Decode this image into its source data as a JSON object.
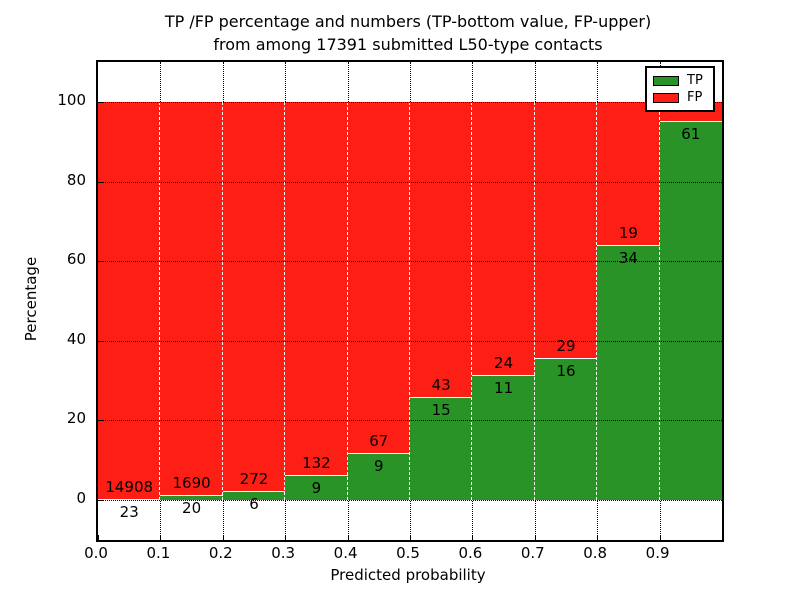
{
  "title": {
    "line1": "TP /FP percentage and numbers (TP-bottom value, FP-upper)",
    "line2": "from among 17391 submitted L50-type contacts"
  },
  "axes": {
    "xlabel": "Predicted probability",
    "ylabel": "Percentage",
    "x_tick_labels": [
      "0.0",
      "0.1",
      "0.2",
      "0.3",
      "0.4",
      "0.5",
      "0.6",
      "0.7",
      "0.8",
      "0.9"
    ],
    "y_tick_labels": [
      "0",
      "20",
      "40",
      "60",
      "80",
      "100"
    ],
    "y_tick_values": [
      0,
      20,
      40,
      60,
      80,
      100
    ],
    "xlim": [
      0.0,
      1.0
    ],
    "ylim": [
      -10,
      110
    ],
    "grid": "dotted"
  },
  "legend": {
    "position": "upper-right",
    "items": [
      {
        "label": "TP",
        "color": "#2a9328"
      },
      {
        "label": "FP",
        "color": "#fd1f15"
      }
    ]
  },
  "colors": {
    "tp": "#2a9328",
    "fp": "#fd1f15",
    "background": "#ffffff",
    "grid": "#000000",
    "text": "#000000"
  },
  "chart_data": {
    "type": "bar",
    "stacked": true,
    "title": "TP /FP percentage and numbers (TP-bottom value, FP-upper)\nfrom among 17391 submitted L50-type contacts",
    "xlabel": "Predicted probability",
    "ylabel": "Percentage",
    "ylim": [
      -10,
      110
    ],
    "legend_entries": [
      "TP",
      "FP"
    ],
    "note": "Each bar spans a 0.1-wide predicted-probability bin; green (TP) percentage on bottom, red (FP) on top, always summing to 100%. Counts are annotated at the TP/FP boundary (TP below, FP above). The FP count of the last bin is hidden behind the legend.",
    "bins": [
      {
        "x0": 0.0,
        "x1": 0.1,
        "tp": 23,
        "fp": 14908,
        "tp_pct": 0.15
      },
      {
        "x0": 0.1,
        "x1": 0.2,
        "tp": 20,
        "fp": 1690,
        "tp_pct": 1.17
      },
      {
        "x0": 0.2,
        "x1": 0.3,
        "tp": 6,
        "fp": 272,
        "tp_pct": 2.16
      },
      {
        "x0": 0.3,
        "x1": 0.4,
        "tp": 9,
        "fp": 132,
        "tp_pct": 6.38
      },
      {
        "x0": 0.4,
        "x1": 0.5,
        "tp": 9,
        "fp": 67,
        "tp_pct": 11.84
      },
      {
        "x0": 0.5,
        "x1": 0.6,
        "tp": 15,
        "fp": 43,
        "tp_pct": 25.86
      },
      {
        "x0": 0.6,
        "x1": 0.7,
        "tp": 11,
        "fp": 24,
        "tp_pct": 31.43
      },
      {
        "x0": 0.7,
        "x1": 0.8,
        "tp": 16,
        "fp": 29,
        "tp_pct": 35.56
      },
      {
        "x0": 0.8,
        "x1": 0.9,
        "tp": 34,
        "fp": 19,
        "tp_pct": 64.15
      },
      {
        "x0": 0.9,
        "x1": 1.0,
        "tp": 61,
        "fp": null,
        "tp_pct": 95.3
      }
    ]
  }
}
